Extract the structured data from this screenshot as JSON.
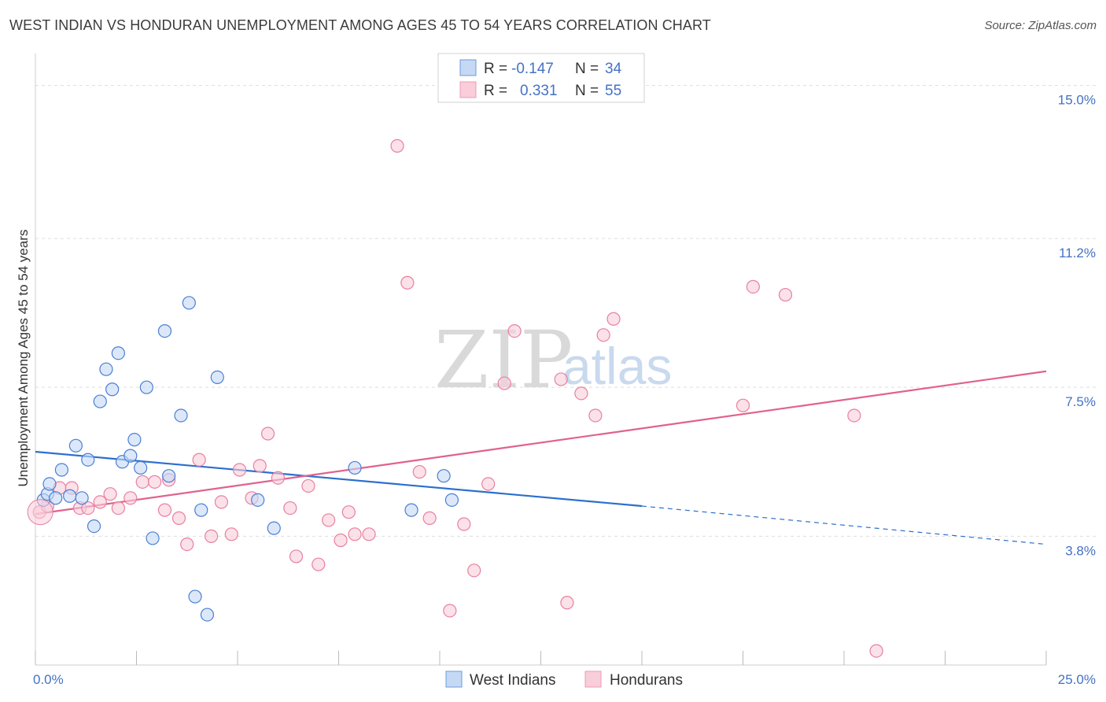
{
  "header": {
    "title": "WEST INDIAN VS HONDURAN UNEMPLOYMENT AMONG AGES 45 TO 54 YEARS CORRELATION CHART",
    "source": "Source: ZipAtlas.com"
  },
  "watermark": {
    "zip": "ZIP",
    "atlas": "atlas"
  },
  "colors": {
    "blue": "#4a7fd4",
    "blue_fill": "#c5d9f5",
    "blue_line": "#2b6fce",
    "pink": "#e87fa3",
    "pink_fill": "#f9cdd9",
    "pink_line": "#e0628e",
    "grid": "#dddddd",
    "tick_label": "#4472c4"
  },
  "legend": {
    "rows": [
      {
        "r_label": "R =",
        "r_value": "-0.147",
        "n_label": "N =",
        "n_value": "34"
      },
      {
        "r_label": "R =",
        "r_value": "0.331",
        "n_label": "N =",
        "n_value": "55"
      }
    ]
  },
  "bottom_legend": {
    "blue": "West Indians",
    "pink": "Hondurans"
  },
  "chart_data": {
    "type": "scatter",
    "title": "WEST INDIAN VS HONDURAN UNEMPLOYMENT AMONG AGES 45 TO 54 YEARS CORRELATION CHART",
    "xlabel": "",
    "ylabel": "Unemployment Among Ages 45 to 54 years",
    "xlim": [
      0,
      25
    ],
    "ylim": [
      0.6,
      15.6
    ],
    "x_tick_labels": [
      "0.0%",
      "25.0%"
    ],
    "y_ticks": [
      3.8,
      7.5,
      11.2,
      15.0
    ],
    "y_tick_labels": [
      "3.8%",
      "7.5%",
      "11.2%",
      "15.0%"
    ],
    "grid": true,
    "series": [
      {
        "name": "West Indians",
        "R": -0.147,
        "N": 34,
        "trend": {
          "x0": 0,
          "y0": 5.9,
          "x1": 15,
          "y1": 4.55,
          "dashed_to_x": 25,
          "dashed_to_y": 3.6
        },
        "points": [
          [
            0.2,
            4.7
          ],
          [
            0.3,
            4.85
          ],
          [
            0.35,
            5.1
          ],
          [
            0.5,
            4.75
          ],
          [
            0.65,
            5.45
          ],
          [
            0.85,
            4.8
          ],
          [
            1.0,
            6.05
          ],
          [
            1.15,
            4.75
          ],
          [
            1.3,
            5.7
          ],
          [
            1.45,
            4.05
          ],
          [
            1.6,
            7.15
          ],
          [
            1.75,
            7.95
          ],
          [
            1.9,
            7.45
          ],
          [
            2.05,
            8.35
          ],
          [
            2.15,
            5.65
          ],
          [
            2.45,
            6.2
          ],
          [
            2.35,
            5.8
          ],
          [
            2.6,
            5.5
          ],
          [
            2.75,
            7.5
          ],
          [
            2.9,
            3.75
          ],
          [
            3.2,
            8.9
          ],
          [
            3.3,
            5.3
          ],
          [
            3.6,
            6.8
          ],
          [
            3.8,
            9.6
          ],
          [
            3.95,
            2.3
          ],
          [
            4.1,
            4.45
          ],
          [
            4.25,
            1.85
          ],
          [
            4.5,
            7.75
          ],
          [
            5.5,
            4.7
          ],
          [
            5.9,
            4.0
          ],
          [
            7.9,
            5.5
          ],
          [
            9.3,
            4.45
          ],
          [
            10.1,
            5.3
          ],
          [
            10.3,
            4.7
          ]
        ]
      },
      {
        "name": "Hondurans",
        "R": 0.331,
        "N": 55,
        "trend": {
          "x0": 0,
          "y0": 4.35,
          "x1": 25,
          "y1": 7.9
        },
        "points": [
          [
            0.1,
            4.4
          ],
          [
            0.3,
            4.55
          ],
          [
            0.6,
            5.0
          ],
          [
            0.9,
            5.0
          ],
          [
            1.1,
            4.5
          ],
          [
            1.3,
            4.5
          ],
          [
            1.6,
            4.65
          ],
          [
            1.85,
            4.85
          ],
          [
            2.05,
            4.5
          ],
          [
            2.35,
            4.75
          ],
          [
            2.65,
            5.15
          ],
          [
            2.95,
            5.15
          ],
          [
            3.2,
            4.45
          ],
          [
            3.3,
            5.2
          ],
          [
            3.55,
            4.25
          ],
          [
            3.75,
            3.6
          ],
          [
            4.05,
            5.7
          ],
          [
            4.35,
            3.8
          ],
          [
            4.6,
            4.65
          ],
          [
            4.85,
            3.85
          ],
          [
            5.05,
            5.45
          ],
          [
            5.35,
            4.75
          ],
          [
            5.55,
            5.55
          ],
          [
            5.75,
            6.35
          ],
          [
            6.0,
            5.25
          ],
          [
            6.3,
            4.5
          ],
          [
            6.45,
            3.3
          ],
          [
            6.75,
            5.05
          ],
          [
            7.0,
            3.1
          ],
          [
            7.25,
            4.2
          ],
          [
            7.55,
            3.7
          ],
          [
            7.75,
            4.4
          ],
          [
            7.9,
            3.85
          ],
          [
            8.25,
            3.85
          ],
          [
            8.95,
            13.5
          ],
          [
            9.2,
            10.1
          ],
          [
            9.5,
            5.4
          ],
          [
            9.75,
            4.25
          ],
          [
            10.25,
            1.95
          ],
          [
            10.6,
            4.1
          ],
          [
            10.85,
            2.95
          ],
          [
            11.2,
            5.1
          ],
          [
            11.6,
            7.6
          ],
          [
            11.85,
            8.9
          ],
          [
            13.0,
            7.7
          ],
          [
            13.15,
            2.15
          ],
          [
            13.5,
            7.35
          ],
          [
            13.85,
            6.8
          ],
          [
            14.05,
            8.8
          ],
          [
            14.3,
            9.2
          ],
          [
            17.5,
            7.05
          ],
          [
            17.75,
            10.0
          ],
          [
            18.55,
            9.8
          ],
          [
            20.25,
            6.8
          ],
          [
            20.8,
            0.95
          ]
        ]
      }
    ]
  }
}
